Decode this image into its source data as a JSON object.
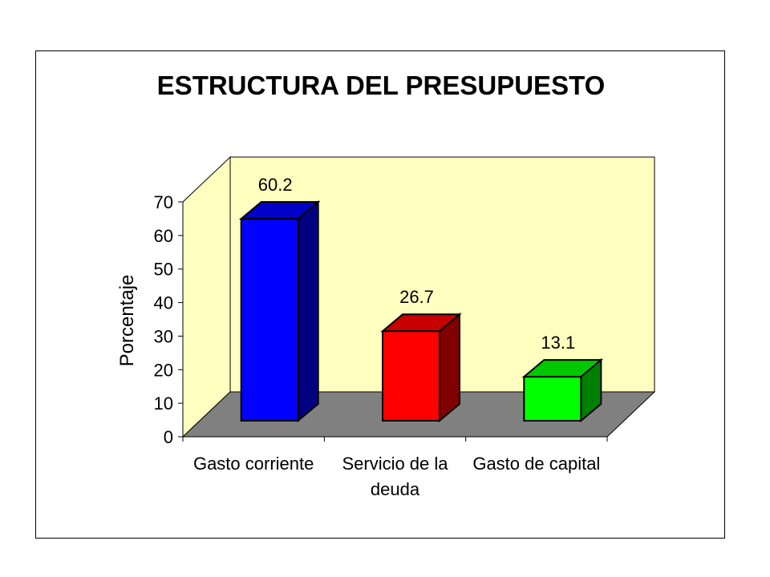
{
  "chart_data": {
    "type": "bar",
    "title": "ESTRUCTURA DEL PRESUPUESTO",
    "xlabel": "",
    "ylabel": "Porcentaje",
    "categories": [
      [
        "Gasto corriente"
      ],
      [
        "Servicio de la",
        "deuda"
      ],
      [
        "Gasto de capital"
      ]
    ],
    "values": [
      60.2,
      26.7,
      13.1
    ],
    "data_labels": [
      "60.2",
      "26.7",
      "13.1"
    ],
    "ylim": [
      0,
      70
    ],
    "yticks": [
      0,
      10,
      20,
      30,
      40,
      50,
      60,
      70
    ],
    "three_d": true,
    "grid": false,
    "colors": {
      "bars": [
        "#0000ff",
        "#ff0000",
        "#00ff00"
      ],
      "bars_side": [
        "#000080",
        "#800000",
        "#008000"
      ],
      "bars_top": [
        "#0000c8",
        "#c80000",
        "#00c800"
      ],
      "back_wall": "#ffffc0",
      "side_wall": "#ffffc0",
      "floor": "#808080"
    }
  }
}
